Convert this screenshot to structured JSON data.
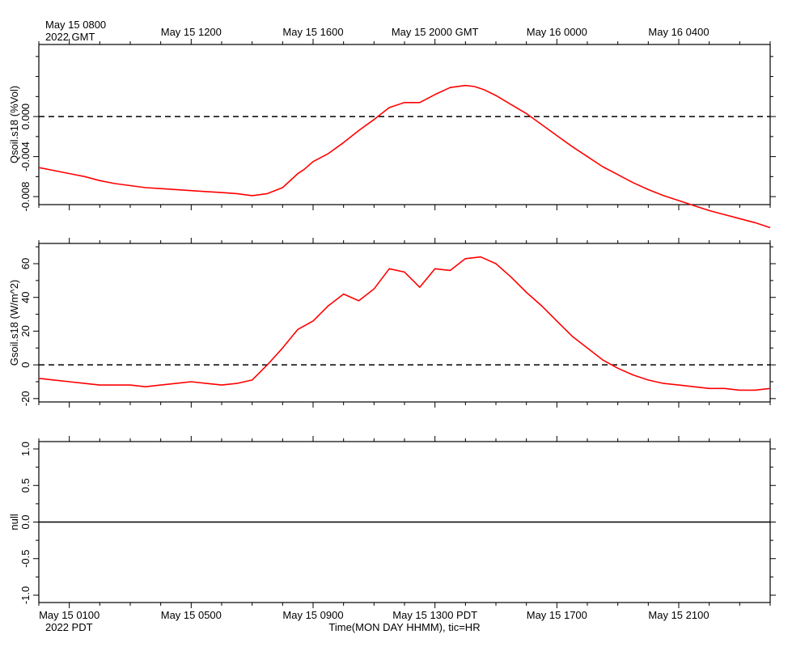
{
  "top_axis": {
    "start_label_line1": "May 15 0800",
    "start_label_line2": "2022 GMT",
    "labels": [
      {
        "hour": 4,
        "text": "May 15 1200"
      },
      {
        "hour": 8,
        "text": "May 15 1600"
      },
      {
        "hour": 12,
        "text": "May 15 2000 GMT"
      },
      {
        "hour": 16,
        "text": "May 16 0000"
      },
      {
        "hour": 20,
        "text": "May 16 0400"
      }
    ]
  },
  "bottom_axis": {
    "labels": [
      {
        "hour": 0,
        "text": "May 15 0100"
      },
      {
        "hour": 4,
        "text": "May 15 0500"
      },
      {
        "hour": 8,
        "text": "May 15 0900"
      },
      {
        "hour": 12,
        "text": "May 15 1300 PDT"
      },
      {
        "hour": 16,
        "text": "May 15 1700"
      },
      {
        "hour": 20,
        "text": "May 15 2100"
      }
    ],
    "year_label": "2022 PDT",
    "title": "Time(MON DAY HHMM), tic=HR"
  },
  "colors": {
    "series": "#ff0000",
    "axes": "#000000"
  },
  "chart_data": [
    {
      "type": "line",
      "ylabel": "Qsoil.s18 (%Vol)",
      "ylim": [
        -0.0088,
        0.0072
      ],
      "yticks": [
        -0.008,
        -0.004,
        0.0
      ],
      "ytick_labels": [
        "-0.008",
        "-0.004",
        "0.000"
      ],
      "yminor_step": 0.002,
      "xlim": [
        -1,
        23
      ],
      "reference_line": {
        "y": 0,
        "style": "dashed"
      },
      "series": [
        {
          "name": "Qsoil.s18",
          "x": [
            -1.0,
            -0.5,
            0.0,
            0.5,
            1.0,
            1.5,
            2.0,
            2.5,
            3.0,
            3.5,
            4.0,
            4.5,
            5.0,
            5.5,
            6.0,
            6.5,
            7.0,
            7.5,
            7.7,
            8.0,
            8.5,
            9.0,
            9.5,
            10.0,
            10.5,
            11.0,
            11.5,
            12.0,
            12.5,
            13.0,
            13.3,
            13.6,
            14.0,
            14.5,
            15.0,
            15.5,
            16.0,
            16.5,
            17.0,
            17.5,
            18.0,
            18.5,
            19.0,
            19.5,
            20.0,
            20.5,
            21.0,
            21.5,
            22.0,
            22.5,
            23.0
          ],
          "values": [
            -0.0051,
            -0.0054,
            -0.0057,
            -0.006,
            -0.0064,
            -0.0067,
            -0.0069,
            -0.0071,
            -0.0072,
            -0.0073,
            -0.0074,
            -0.0075,
            -0.0076,
            -0.0077,
            -0.0079,
            -0.0077,
            -0.0071,
            -0.0057,
            -0.0053,
            -0.0045,
            -0.0037,
            -0.0026,
            -0.0014,
            -0.0003,
            0.0009,
            0.0014,
            0.0014,
            0.0022,
            0.0029,
            0.0031,
            0.003,
            0.0027,
            0.0021,
            0.0012,
            0.0003,
            -0.0008,
            -0.0019,
            -0.003,
            -0.004,
            -0.005,
            -0.0058,
            -0.0066,
            -0.0073,
            -0.0079,
            -0.0084,
            -0.0089,
            -0.0094,
            -0.0098,
            -0.0102,
            -0.0106,
            -0.0111
          ]
        }
      ]
    },
    {
      "type": "line",
      "ylabel": "Gsoil.s18 (W/m^2)",
      "ylim": [
        -22,
        72
      ],
      "yticks": [
        -20,
        0,
        20,
        40,
        60
      ],
      "ytick_labels": [
        "-20",
        "0",
        "20",
        "40",
        "60"
      ],
      "yminor_step": 10,
      "xlim": [
        -1,
        23
      ],
      "reference_line": {
        "y": 0,
        "style": "dashed"
      },
      "series": [
        {
          "name": "Gsoil.s18",
          "x": [
            -1.0,
            -0.5,
            0.0,
            0.5,
            1.0,
            1.5,
            2.0,
            2.5,
            3.0,
            3.5,
            4.0,
            4.5,
            5.0,
            5.5,
            6.0,
            6.5,
            7.0,
            7.5,
            8.0,
            8.5,
            9.0,
            9.5,
            10.0,
            10.5,
            11.0,
            11.5,
            12.0,
            12.5,
            13.0,
            13.5,
            14.0,
            14.5,
            15.0,
            15.5,
            16.0,
            16.5,
            17.0,
            17.5,
            18.0,
            18.5,
            19.0,
            19.5,
            20.0,
            20.5,
            21.0,
            21.5,
            22.0,
            22.5,
            23.0
          ],
          "values": [
            -8,
            -9,
            -10,
            -11,
            -12,
            -12,
            -12,
            -13,
            -12,
            -11,
            -10,
            -11,
            -12,
            -11,
            -9,
            0,
            10,
            21,
            26,
            35,
            42,
            38,
            45,
            57,
            55,
            46,
            57,
            56,
            63,
            64,
            60,
            52,
            43,
            35,
            26,
            17,
            10,
            3,
            -2,
            -6,
            -9,
            -11,
            -12,
            -13,
            -14,
            -14,
            -15,
            -15,
            -14
          ]
        }
      ]
    },
    {
      "type": "line",
      "ylabel": "null",
      "ylim": [
        -1.1,
        1.1
      ],
      "yticks": [
        -1.0,
        -0.5,
        0.0,
        0.5,
        1.0
      ],
      "ytick_labels": [
        "-1.0",
        "-0.5",
        "0.0",
        "0.5",
        "1.0"
      ],
      "yminor_step": 0.25,
      "xlim": [
        -1,
        23
      ],
      "reference_line": {
        "y": 0,
        "style": "solid"
      },
      "series": []
    }
  ]
}
